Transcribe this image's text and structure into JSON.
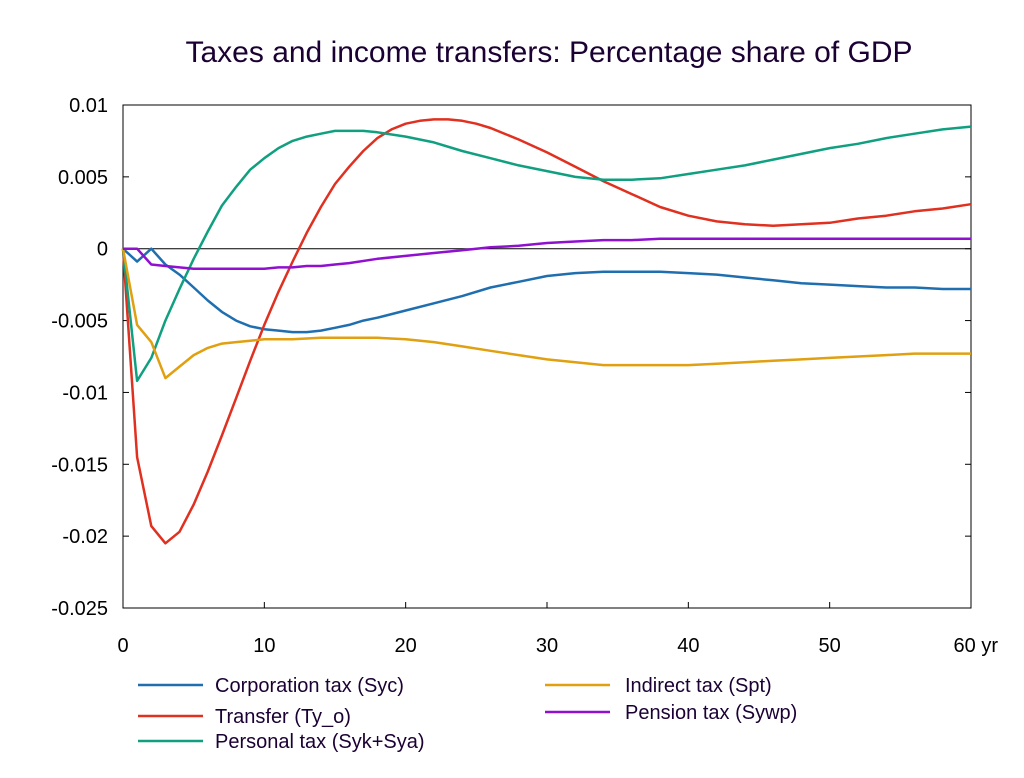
{
  "chart_data": {
    "type": "line",
    "title": "Taxes and income transfers: Percentage share of GDP",
    "xlabel": "",
    "ylabel": "",
    "xlim": [
      0,
      60
    ],
    "ylim": [
      -0.025,
      0.01
    ],
    "x_ticks": [
      0,
      10,
      20,
      30,
      40,
      50,
      60
    ],
    "x_tick_labels": [
      "0",
      "10",
      "20",
      "30",
      "40",
      "50",
      "60 yr"
    ],
    "y_ticks": [
      0.01,
      0.005,
      0,
      -0.005,
      -0.01,
      -0.015,
      -0.02,
      -0.025
    ],
    "y_tick_labels": [
      "0.01",
      "0.005",
      "0",
      "-0.005",
      "-0.01",
      "-0.015",
      "-0.02",
      "-0.025"
    ],
    "zero_line": true,
    "grid": false,
    "legend_position": "bottom",
    "series": [
      {
        "name": "Corporation tax (Syc)",
        "color": "#1f6fb0",
        "legend_slot": "left-1",
        "x": [
          0,
          1,
          2,
          3,
          4,
          5,
          6,
          7,
          8,
          9,
          10,
          11,
          12,
          13,
          14,
          15,
          16,
          17,
          18,
          20,
          22,
          24,
          26,
          28,
          30,
          32,
          34,
          36,
          38,
          40,
          42,
          44,
          46,
          48,
          50,
          52,
          54,
          56,
          58,
          60
        ],
        "values": [
          0,
          -0.0009,
          0,
          -0.0011,
          -0.0018,
          -0.0027,
          -0.0036,
          -0.0044,
          -0.005,
          -0.0054,
          -0.0056,
          -0.0057,
          -0.0058,
          -0.0058,
          -0.0057,
          -0.0055,
          -0.0053,
          -0.005,
          -0.0048,
          -0.0043,
          -0.0038,
          -0.0033,
          -0.0027,
          -0.0023,
          -0.0019,
          -0.0017,
          -0.0016,
          -0.0016,
          -0.0016,
          -0.0017,
          -0.0018,
          -0.002,
          -0.0022,
          -0.0024,
          -0.0025,
          -0.0026,
          -0.0027,
          -0.0027,
          -0.0028,
          -0.0028
        ]
      },
      {
        "name": "Transfer (Ty_o)",
        "color": "#e03020",
        "legend_slot": "left-2",
        "x": [
          0,
          1,
          2,
          3,
          4,
          5,
          6,
          7,
          8,
          9,
          10,
          11,
          12,
          13,
          14,
          15,
          16,
          17,
          18,
          19,
          20,
          21,
          22,
          23,
          24,
          25,
          26,
          28,
          30,
          32,
          34,
          36,
          38,
          40,
          42,
          44,
          46,
          48,
          50,
          52,
          54,
          56,
          58,
          60
        ],
        "values": [
          0,
          -0.0145,
          -0.0193,
          -0.0205,
          -0.0197,
          -0.0178,
          -0.0155,
          -0.013,
          -0.0104,
          -0.0078,
          -0.0053,
          -0.003,
          -0.0009,
          0.0011,
          0.0029,
          0.0045,
          0.0057,
          0.0068,
          0.0077,
          0.0083,
          0.0087,
          0.0089,
          0.009,
          0.009,
          0.0089,
          0.0087,
          0.0084,
          0.0076,
          0.0067,
          0.0057,
          0.0047,
          0.0038,
          0.0029,
          0.0023,
          0.0019,
          0.0017,
          0.0016,
          0.0017,
          0.0018,
          0.0021,
          0.0023,
          0.0026,
          0.0028,
          0.0031
        ]
      },
      {
        "name": "Personal tax (Syk+Sya)",
        "color": "#10a080",
        "legend_slot": "left-3",
        "x": [
          0,
          1,
          2,
          3,
          4,
          5,
          6,
          7,
          8,
          9,
          10,
          11,
          12,
          13,
          14,
          15,
          16,
          17,
          18,
          20,
          22,
          24,
          26,
          28,
          30,
          32,
          34,
          36,
          38,
          40,
          42,
          44,
          46,
          48,
          50,
          52,
          54,
          56,
          58,
          60
        ],
        "values": [
          0,
          -0.0092,
          -0.0076,
          -0.005,
          -0.0028,
          -0.0007,
          0.0012,
          0.003,
          0.0043,
          0.0055,
          0.0063,
          0.007,
          0.0075,
          0.0078,
          0.008,
          0.0082,
          0.0082,
          0.0082,
          0.0081,
          0.0078,
          0.0074,
          0.0068,
          0.0063,
          0.0058,
          0.0054,
          0.005,
          0.0048,
          0.0048,
          0.0049,
          0.0052,
          0.0055,
          0.0058,
          0.0062,
          0.0066,
          0.007,
          0.0073,
          0.0077,
          0.008,
          0.0083,
          0.0085
        ]
      },
      {
        "name": "Indirect tax (Spt)",
        "color": "#e0a010",
        "legend_slot": "right-1",
        "x": [
          0,
          1,
          2,
          3,
          4,
          5,
          6,
          7,
          8,
          9,
          10,
          12,
          14,
          16,
          18,
          20,
          22,
          24,
          26,
          28,
          30,
          32,
          34,
          36,
          38,
          40,
          42,
          44,
          46,
          48,
          50,
          52,
          54,
          56,
          58,
          60
        ],
        "values": [
          0,
          -0.0053,
          -0.0065,
          -0.009,
          -0.0082,
          -0.0074,
          -0.0069,
          -0.0066,
          -0.0065,
          -0.0064,
          -0.0063,
          -0.0063,
          -0.0062,
          -0.0062,
          -0.0062,
          -0.0063,
          -0.0065,
          -0.0068,
          -0.0071,
          -0.0074,
          -0.0077,
          -0.0079,
          -0.0081,
          -0.0081,
          -0.0081,
          -0.0081,
          -0.008,
          -0.0079,
          -0.0078,
          -0.0077,
          -0.0076,
          -0.0075,
          -0.0074,
          -0.0073,
          -0.0073,
          -0.0073
        ]
      },
      {
        "name": "Pension tax (Sywp)",
        "color": "#9010d0",
        "legend_slot": "right-2",
        "x": [
          0,
          1,
          2,
          3,
          4,
          5,
          6,
          7,
          8,
          9,
          10,
          11,
          12,
          13,
          14,
          15,
          16,
          18,
          20,
          22,
          24,
          26,
          28,
          30,
          32,
          34,
          36,
          38,
          40,
          42,
          44,
          46,
          48,
          50,
          52,
          54,
          56,
          58,
          60
        ],
        "values": [
          0,
          0,
          -0.0011,
          -0.0012,
          -0.0013,
          -0.0014,
          -0.0014,
          -0.0014,
          -0.0014,
          -0.0014,
          -0.0014,
          -0.0013,
          -0.0013,
          -0.0012,
          -0.0012,
          -0.0011,
          -0.001,
          -0.0007,
          -0.0005,
          -0.0003,
          -0.0001,
          0.0001,
          0.0002,
          0.0004,
          0.0005,
          0.0006,
          0.0006,
          0.0007,
          0.0007,
          0.0007,
          0.0007,
          0.0007,
          0.0007,
          0.0007,
          0.0007,
          0.0007,
          0.0007,
          0.0007,
          0.0007
        ]
      }
    ]
  }
}
